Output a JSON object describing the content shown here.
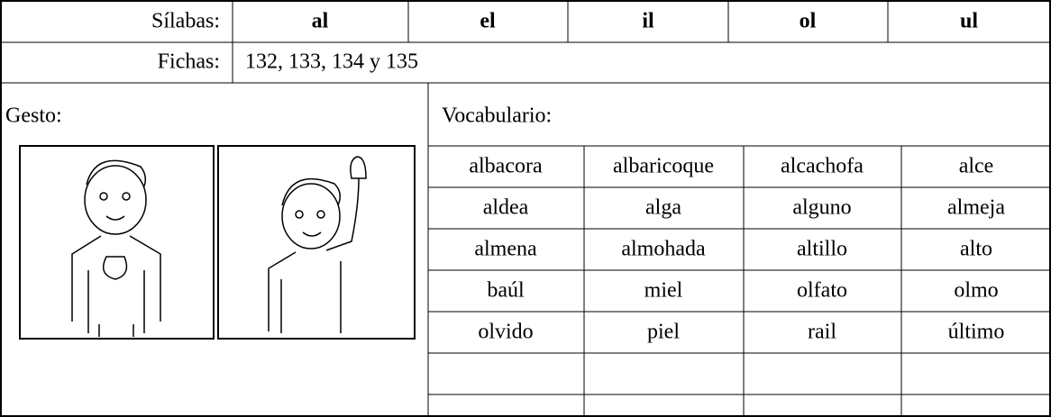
{
  "header": {
    "syllables_label": "Sílabas:",
    "syllables": [
      "al",
      "el",
      "il",
      "ol",
      "ul"
    ]
  },
  "cards": {
    "label": "Fichas:",
    "value": "132, 133, 134 y 135"
  },
  "gesture": {
    "label": "Gesto:"
  },
  "vocabulary": {
    "label": "Vocabulario:",
    "rows": [
      [
        "albacora",
        "albaricoque",
        "alcachofa",
        "alce"
      ],
      [
        "aldea",
        "alga",
        "alguno",
        "almeja"
      ],
      [
        "almena",
        "almohada",
        "altillo",
        "alto"
      ],
      [
        "baúl",
        "miel",
        "olfato",
        "olmo"
      ],
      [
        "olvido",
        "piel",
        "rail",
        "último"
      ]
    ]
  }
}
